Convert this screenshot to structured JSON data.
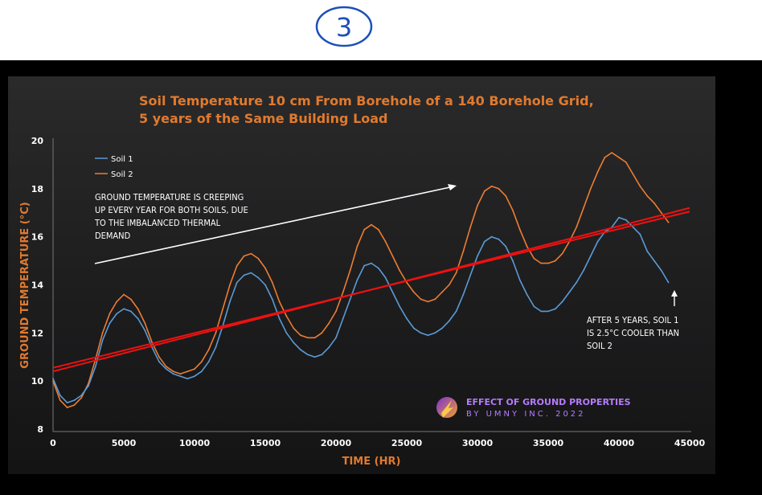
{
  "page_mark": "3",
  "colors": {
    "soil1": "#5b9bd5",
    "soil2": "#ed7d31",
    "trend": "#ee1111",
    "title": "#e07a2e",
    "text": "#ffffff",
    "brand": "#b67bff"
  },
  "chart_data": {
    "type": "line",
    "title_line1": "Soil Temperature 10 cm From Borehole of a 140 Borehole Grid,",
    "title_line2": "5 years of the Same Building Load",
    "xlabel": "TIME (HR)",
    "ylabel": "GROUND TEMPERATURE (°C)",
    "xlim": [
      0,
      45000
    ],
    "ylim": [
      8,
      20
    ],
    "x_ticks": [
      "0",
      "5000",
      "10000",
      "15000",
      "20000",
      "25000",
      "30000",
      "35000",
      "40000",
      "45000"
    ],
    "y_ticks": [
      "8",
      "10",
      "12",
      "14",
      "16",
      "18",
      "20"
    ],
    "x_tick_values": [
      0,
      5000,
      10000,
      15000,
      20000,
      25000,
      30000,
      35000,
      40000,
      45000
    ],
    "y_tick_values": [
      8,
      10,
      12,
      14,
      16,
      18,
      20
    ],
    "grid": false,
    "legend_position": "top-left",
    "series": [
      {
        "name": "Soil 1",
        "x": [
          0,
          500,
          1000,
          1500,
          2000,
          2500,
          3000,
          3500,
          4000,
          4500,
          5000,
          5500,
          6000,
          6500,
          7000,
          7500,
          8000,
          8500,
          9000,
          9500,
          10000,
          10500,
          11000,
          11500,
          12000,
          12500,
          13000,
          13500,
          14000,
          14500,
          15000,
          15500,
          16000,
          16500,
          17000,
          17500,
          18000,
          18500,
          19000,
          19500,
          20000,
          20500,
          21000,
          21500,
          22000,
          22500,
          23000,
          23500,
          24000,
          24500,
          25000,
          25500,
          26000,
          26500,
          27000,
          27500,
          28000,
          28500,
          29000,
          29500,
          30000,
          30500,
          31000,
          31500,
          32000,
          32500,
          33000,
          33500,
          34000,
          34500,
          35000,
          35500,
          36000,
          36500,
          37000,
          37500,
          38000,
          38500,
          39000,
          39500,
          40000,
          40500,
          41000,
          41500,
          42000,
          42500,
          43000,
          43500
        ],
        "values": [
          10.1,
          9.4,
          9.1,
          9.2,
          9.4,
          9.8,
          10.6,
          11.7,
          12.4,
          12.8,
          13.0,
          12.9,
          12.6,
          12.1,
          11.4,
          10.8,
          10.5,
          10.3,
          10.2,
          10.1,
          10.2,
          10.4,
          10.8,
          11.4,
          12.3,
          13.3,
          14.1,
          14.4,
          14.5,
          14.3,
          14.0,
          13.4,
          12.6,
          12.0,
          11.6,
          11.3,
          11.1,
          11.0,
          11.1,
          11.4,
          11.8,
          12.6,
          13.4,
          14.2,
          14.8,
          14.9,
          14.7,
          14.3,
          13.7,
          13.1,
          12.6,
          12.2,
          12.0,
          11.9,
          12.0,
          12.2,
          12.5,
          12.9,
          13.6,
          14.4,
          15.2,
          15.8,
          16.0,
          15.9,
          15.6,
          15.0,
          14.2,
          13.6,
          13.1,
          12.9,
          12.9,
          13.0,
          13.3,
          13.7,
          14.1,
          14.6,
          15.2,
          15.8,
          16.2,
          16.4,
          16.8,
          16.7,
          16.4,
          16.1,
          15.4,
          15.0,
          14.6,
          14.1
        ]
      },
      {
        "name": "Soil 2",
        "x": [
          0,
          500,
          1000,
          1500,
          2000,
          2500,
          3000,
          3500,
          4000,
          4500,
          5000,
          5500,
          6000,
          6500,
          7000,
          7500,
          8000,
          8500,
          9000,
          9500,
          10000,
          10500,
          11000,
          11500,
          12000,
          12500,
          13000,
          13500,
          14000,
          14500,
          15000,
          15500,
          16000,
          16500,
          17000,
          17500,
          18000,
          18500,
          19000,
          19500,
          20000,
          20500,
          21000,
          21500,
          22000,
          22500,
          23000,
          23500,
          24000,
          24500,
          25000,
          25500,
          26000,
          26500,
          27000,
          27500,
          28000,
          28500,
          29000,
          29500,
          30000,
          30500,
          31000,
          31500,
          32000,
          32500,
          33000,
          33500,
          34000,
          34500,
          35000,
          35500,
          36000,
          36500,
          37000,
          37500,
          38000,
          38500,
          39000,
          39500,
          40000,
          40500,
          41000,
          41500,
          42000,
          42500,
          43000,
          43500
        ],
        "values": [
          10.0,
          9.2,
          8.9,
          9.0,
          9.3,
          9.9,
          10.9,
          12.0,
          12.8,
          13.3,
          13.6,
          13.4,
          13.0,
          12.4,
          11.6,
          11.0,
          10.6,
          10.4,
          10.3,
          10.4,
          10.5,
          10.8,
          11.3,
          12.0,
          13.0,
          14.0,
          14.8,
          15.2,
          15.3,
          15.1,
          14.7,
          14.1,
          13.3,
          12.7,
          12.2,
          11.9,
          11.8,
          11.8,
          12.0,
          12.4,
          12.9,
          13.7,
          14.6,
          15.6,
          16.3,
          16.5,
          16.3,
          15.8,
          15.2,
          14.6,
          14.1,
          13.7,
          13.4,
          13.3,
          13.4,
          13.7,
          14.0,
          14.5,
          15.4,
          16.4,
          17.3,
          17.9,
          18.1,
          18.0,
          17.7,
          17.1,
          16.3,
          15.6,
          15.1,
          14.9,
          14.9,
          15.0,
          15.3,
          15.8,
          16.4,
          17.2,
          18.0,
          18.7,
          19.3,
          19.5,
          19.3,
          19.1,
          18.6,
          18.1,
          17.7,
          17.4,
          17.0,
          16.6
        ]
      }
    ],
    "trend_lines": [
      {
        "x": [
          0,
          45000
        ],
        "values": [
          10.4,
          17.2
        ]
      },
      {
        "x": [
          0,
          45000
        ],
        "values": [
          10.55,
          17.05
        ]
      }
    ],
    "annotations": {
      "creeping_line1": "GROUND TEMPERATURE IS CREEPING",
      "creeping_line2": "UP EVERY YEAR FOR BOTH SOILS, DUE",
      "creeping_line3": "TO THE IMBALANCED THERMAL",
      "creeping_line4": "DEMAND",
      "after_line1": "AFTER 5 YEARS, SOIL 1",
      "after_line2": "IS 2.5°C COOLER THAN",
      "after_line3": "SOIL 2"
    },
    "branding": {
      "line1": "EFFECT OF GROUND PROPERTIES",
      "line2": "BY UMNY INC. 2022"
    }
  }
}
